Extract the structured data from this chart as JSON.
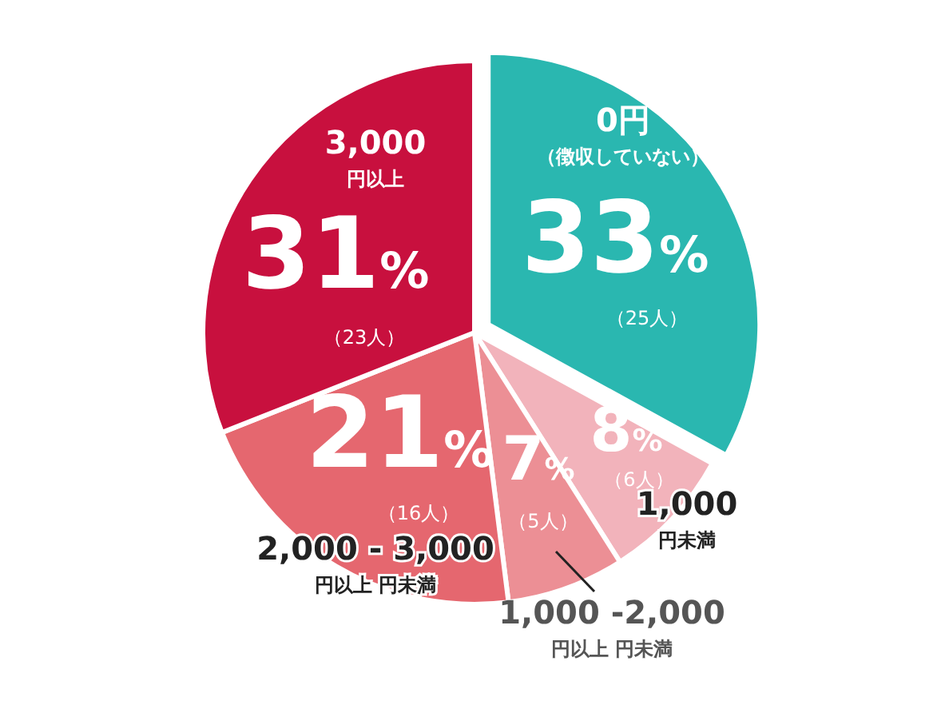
{
  "chart_data": {
    "type": "pie",
    "categories": [
      "0円$_{（徴収していない）}$",
      "1,000$_{円未満}$",
      "1,000 -2,000$_{円以上 円未満}$",
      "2,000 - 3,000$_{円以上 円未満}$",
      "3,000$_{円以上}$"
    ],
    "values": [
      33,
      8,
      7,
      21,
      31
    ],
    "value_labels": [
      "33%",
      "8%",
      "7%",
      "21%",
      "31%"
    ],
    "colors": [
      "#2ab7b0",
      "#f2b3bb",
      "#ec8f95",
      "#e5676f",
      "#c8103e"
    ],
    "annotations": [
      "（25人）",
      "（6人）",
      "（5人）",
      "（16人）",
      "（23人）"
    ]
  }
}
